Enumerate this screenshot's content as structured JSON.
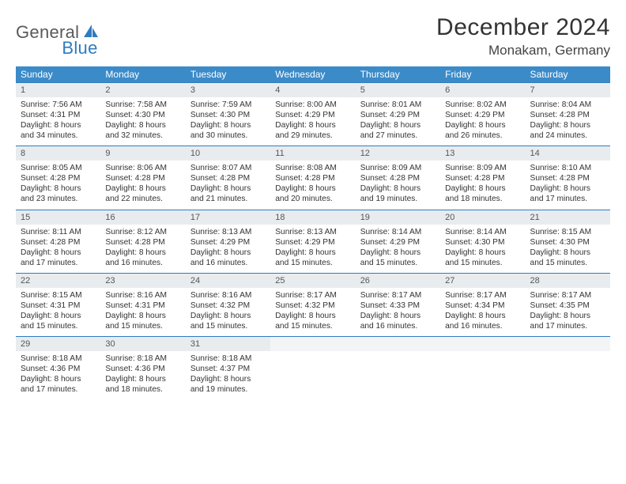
{
  "logo": {
    "word1": "General",
    "word2": "Blue"
  },
  "title": "December 2024",
  "location": "Monakam, Germany",
  "colors": {
    "header_bg": "#3b8bc9",
    "header_text": "#ffffff",
    "daynum_bg": "#e9ecef",
    "border": "#2f7bbf",
    "logo_gray": "#5a5a5a",
    "logo_blue": "#2f7bbf"
  },
  "weekdays": [
    "Sunday",
    "Monday",
    "Tuesday",
    "Wednesday",
    "Thursday",
    "Friday",
    "Saturday"
  ],
  "weeks": [
    [
      {
        "n": "1",
        "sr": "Sunrise: 7:56 AM",
        "ss": "Sunset: 4:31 PM",
        "d1": "Daylight: 8 hours",
        "d2": "and 34 minutes."
      },
      {
        "n": "2",
        "sr": "Sunrise: 7:58 AM",
        "ss": "Sunset: 4:30 PM",
        "d1": "Daylight: 8 hours",
        "d2": "and 32 minutes."
      },
      {
        "n": "3",
        "sr": "Sunrise: 7:59 AM",
        "ss": "Sunset: 4:30 PM",
        "d1": "Daylight: 8 hours",
        "d2": "and 30 minutes."
      },
      {
        "n": "4",
        "sr": "Sunrise: 8:00 AM",
        "ss": "Sunset: 4:29 PM",
        "d1": "Daylight: 8 hours",
        "d2": "and 29 minutes."
      },
      {
        "n": "5",
        "sr": "Sunrise: 8:01 AM",
        "ss": "Sunset: 4:29 PM",
        "d1": "Daylight: 8 hours",
        "d2": "and 27 minutes."
      },
      {
        "n": "6",
        "sr": "Sunrise: 8:02 AM",
        "ss": "Sunset: 4:29 PM",
        "d1": "Daylight: 8 hours",
        "d2": "and 26 minutes."
      },
      {
        "n": "7",
        "sr": "Sunrise: 8:04 AM",
        "ss": "Sunset: 4:28 PM",
        "d1": "Daylight: 8 hours",
        "d2": "and 24 minutes."
      }
    ],
    [
      {
        "n": "8",
        "sr": "Sunrise: 8:05 AM",
        "ss": "Sunset: 4:28 PM",
        "d1": "Daylight: 8 hours",
        "d2": "and 23 minutes."
      },
      {
        "n": "9",
        "sr": "Sunrise: 8:06 AM",
        "ss": "Sunset: 4:28 PM",
        "d1": "Daylight: 8 hours",
        "d2": "and 22 minutes."
      },
      {
        "n": "10",
        "sr": "Sunrise: 8:07 AM",
        "ss": "Sunset: 4:28 PM",
        "d1": "Daylight: 8 hours",
        "d2": "and 21 minutes."
      },
      {
        "n": "11",
        "sr": "Sunrise: 8:08 AM",
        "ss": "Sunset: 4:28 PM",
        "d1": "Daylight: 8 hours",
        "d2": "and 20 minutes."
      },
      {
        "n": "12",
        "sr": "Sunrise: 8:09 AM",
        "ss": "Sunset: 4:28 PM",
        "d1": "Daylight: 8 hours",
        "d2": "and 19 minutes."
      },
      {
        "n": "13",
        "sr": "Sunrise: 8:09 AM",
        "ss": "Sunset: 4:28 PM",
        "d1": "Daylight: 8 hours",
        "d2": "and 18 minutes."
      },
      {
        "n": "14",
        "sr": "Sunrise: 8:10 AM",
        "ss": "Sunset: 4:28 PM",
        "d1": "Daylight: 8 hours",
        "d2": "and 17 minutes."
      }
    ],
    [
      {
        "n": "15",
        "sr": "Sunrise: 8:11 AM",
        "ss": "Sunset: 4:28 PM",
        "d1": "Daylight: 8 hours",
        "d2": "and 17 minutes."
      },
      {
        "n": "16",
        "sr": "Sunrise: 8:12 AM",
        "ss": "Sunset: 4:28 PM",
        "d1": "Daylight: 8 hours",
        "d2": "and 16 minutes."
      },
      {
        "n": "17",
        "sr": "Sunrise: 8:13 AM",
        "ss": "Sunset: 4:29 PM",
        "d1": "Daylight: 8 hours",
        "d2": "and 16 minutes."
      },
      {
        "n": "18",
        "sr": "Sunrise: 8:13 AM",
        "ss": "Sunset: 4:29 PM",
        "d1": "Daylight: 8 hours",
        "d2": "and 15 minutes."
      },
      {
        "n": "19",
        "sr": "Sunrise: 8:14 AM",
        "ss": "Sunset: 4:29 PM",
        "d1": "Daylight: 8 hours",
        "d2": "and 15 minutes."
      },
      {
        "n": "20",
        "sr": "Sunrise: 8:14 AM",
        "ss": "Sunset: 4:30 PM",
        "d1": "Daylight: 8 hours",
        "d2": "and 15 minutes."
      },
      {
        "n": "21",
        "sr": "Sunrise: 8:15 AM",
        "ss": "Sunset: 4:30 PM",
        "d1": "Daylight: 8 hours",
        "d2": "and 15 minutes."
      }
    ],
    [
      {
        "n": "22",
        "sr": "Sunrise: 8:15 AM",
        "ss": "Sunset: 4:31 PM",
        "d1": "Daylight: 8 hours",
        "d2": "and 15 minutes."
      },
      {
        "n": "23",
        "sr": "Sunrise: 8:16 AM",
        "ss": "Sunset: 4:31 PM",
        "d1": "Daylight: 8 hours",
        "d2": "and 15 minutes."
      },
      {
        "n": "24",
        "sr": "Sunrise: 8:16 AM",
        "ss": "Sunset: 4:32 PM",
        "d1": "Daylight: 8 hours",
        "d2": "and 15 minutes."
      },
      {
        "n": "25",
        "sr": "Sunrise: 8:17 AM",
        "ss": "Sunset: 4:32 PM",
        "d1": "Daylight: 8 hours",
        "d2": "and 15 minutes."
      },
      {
        "n": "26",
        "sr": "Sunrise: 8:17 AM",
        "ss": "Sunset: 4:33 PM",
        "d1": "Daylight: 8 hours",
        "d2": "and 16 minutes."
      },
      {
        "n": "27",
        "sr": "Sunrise: 8:17 AM",
        "ss": "Sunset: 4:34 PM",
        "d1": "Daylight: 8 hours",
        "d2": "and 16 minutes."
      },
      {
        "n": "28",
        "sr": "Sunrise: 8:17 AM",
        "ss": "Sunset: 4:35 PM",
        "d1": "Daylight: 8 hours",
        "d2": "and 17 minutes."
      }
    ],
    [
      {
        "n": "29",
        "sr": "Sunrise: 8:18 AM",
        "ss": "Sunset: 4:36 PM",
        "d1": "Daylight: 8 hours",
        "d2": "and 17 minutes."
      },
      {
        "n": "30",
        "sr": "Sunrise: 8:18 AM",
        "ss": "Sunset: 4:36 PM",
        "d1": "Daylight: 8 hours",
        "d2": "and 18 minutes."
      },
      {
        "n": "31",
        "sr": "Sunrise: 8:18 AM",
        "ss": "Sunset: 4:37 PM",
        "d1": "Daylight: 8 hours",
        "d2": "and 19 minutes."
      },
      null,
      null,
      null,
      null
    ]
  ]
}
